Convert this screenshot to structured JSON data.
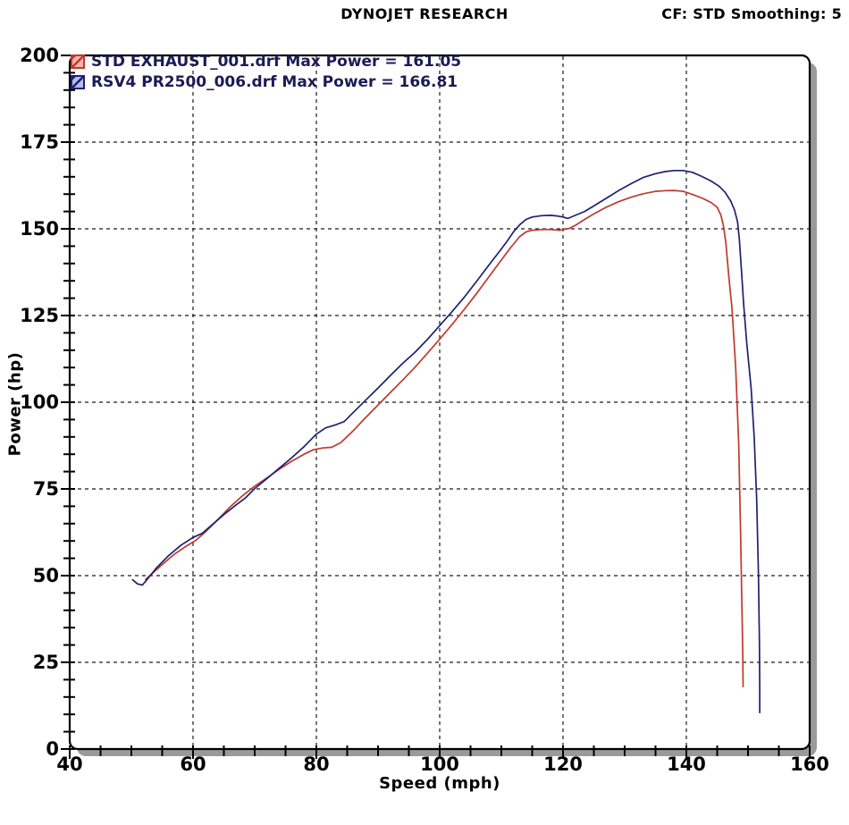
{
  "header": {
    "title": "DYNOJET RESEARCH",
    "right_status": "CF: STD  Smoothing: 5"
  },
  "legend": {
    "items": [
      {
        "label": "STD EXHAUST_001.drf Max Power = 161.05",
        "line_color": "#c0392b",
        "swatch_fill": "#f2b5b0"
      },
      {
        "label": "RSV4 PR2500_006.drf Max Power = 166.81",
        "line_color": "#1c2270",
        "swatch_fill": "#b7bde8"
      }
    ]
  },
  "chart_data": {
    "type": "line",
    "title": "DYNOJET RESEARCH",
    "xlabel": "Speed (mph)",
    "ylabel": "Power (hp)",
    "xlim": [
      40,
      160
    ],
    "ylim": [
      0,
      200
    ],
    "x_major_ticks": [
      40,
      60,
      80,
      100,
      120,
      140,
      160
    ],
    "y_major_ticks": [
      0,
      25,
      50,
      75,
      100,
      125,
      150,
      175,
      200
    ],
    "x_minor_step": 5,
    "y_minor_step": 5,
    "grid": "dashed-major",
    "legend_position": "top-left-inside",
    "series": [
      {
        "name": "STD EXHAUST_001.drf",
        "max_power": 161.05,
        "color": "#c0392b",
        "points": [
          [
            52.3,
            48.9
          ],
          [
            53.5,
            50.8
          ],
          [
            55,
            53.2
          ],
          [
            57,
            56.2
          ],
          [
            59,
            58.6
          ],
          [
            60.5,
            60.2
          ],
          [
            62,
            62.6
          ],
          [
            64,
            66.1
          ],
          [
            66,
            69.8
          ],
          [
            68,
            73.0
          ],
          [
            70,
            75.8
          ],
          [
            72,
            78.2
          ],
          [
            74,
            80.7
          ],
          [
            76,
            83.0
          ],
          [
            78,
            85.0
          ],
          [
            79.5,
            86.3
          ],
          [
            81,
            86.8
          ],
          [
            82.5,
            87.0
          ],
          [
            84,
            88.4
          ],
          [
            86,
            91.8
          ],
          [
            88,
            95.6
          ],
          [
            90,
            99.2
          ],
          [
            92,
            102.8
          ],
          [
            94,
            106.4
          ],
          [
            96,
            110.1
          ],
          [
            98,
            114.1
          ],
          [
            100,
            118.2
          ],
          [
            102,
            122.4
          ],
          [
            104,
            126.8
          ],
          [
            106,
            131.4
          ],
          [
            108,
            136.2
          ],
          [
            110,
            141.0
          ],
          [
            111.5,
            144.6
          ],
          [
            113,
            147.8
          ],
          [
            114,
            149.1
          ],
          [
            115,
            149.6
          ],
          [
            116.5,
            149.8
          ],
          [
            118,
            149.8
          ],
          [
            119.5,
            149.6
          ],
          [
            121,
            150.1
          ],
          [
            122,
            151.0
          ],
          [
            123.5,
            152.7
          ],
          [
            125,
            154.3
          ],
          [
            127,
            156.2
          ],
          [
            129,
            157.8
          ],
          [
            131,
            159.1
          ],
          [
            133,
            160.1
          ],
          [
            135,
            160.8
          ],
          [
            136.5,
            161.0
          ],
          [
            138,
            161.05
          ],
          [
            139.5,
            160.8
          ],
          [
            141,
            159.9
          ],
          [
            142.5,
            158.9
          ],
          [
            144,
            157.6
          ],
          [
            145,
            156.2
          ],
          [
            145.6,
            154.0
          ],
          [
            146,
            151.0
          ],
          [
            146.4,
            146.0
          ],
          [
            146.9,
            136.0
          ],
          [
            147.4,
            127.0
          ],
          [
            148,
            110.0
          ],
          [
            148.5,
            88.0
          ],
          [
            148.8,
            62.0
          ],
          [
            149,
            42.0
          ],
          [
            149.15,
            28.0
          ],
          [
            149.2,
            18.0
          ]
        ]
      },
      {
        "name": "RSV4 PR2500_006.drf",
        "max_power": 166.81,
        "color": "#1c2270",
        "points": [
          [
            50.2,
            48.8
          ],
          [
            51,
            47.6
          ],
          [
            51.8,
            47.3
          ],
          [
            52.6,
            49.0
          ],
          [
            54,
            52.1
          ],
          [
            56,
            55.7
          ],
          [
            58,
            58.7
          ],
          [
            60,
            61.0
          ],
          [
            61.5,
            62.2
          ],
          [
            63,
            64.5
          ],
          [
            65,
            67.6
          ],
          [
            67,
            70.4
          ],
          [
            68.5,
            72.4
          ],
          [
            70,
            75.1
          ],
          [
            72,
            78.0
          ],
          [
            74,
            81.0
          ],
          [
            76,
            84.0
          ],
          [
            78,
            87.2
          ],
          [
            80,
            90.8
          ],
          [
            81.5,
            92.6
          ],
          [
            83,
            93.4
          ],
          [
            84.5,
            94.4
          ],
          [
            86,
            97.1
          ],
          [
            88,
            100.6
          ],
          [
            90,
            104.1
          ],
          [
            92,
            107.7
          ],
          [
            94,
            111.2
          ],
          [
            96,
            114.4
          ],
          [
            98,
            118.1
          ],
          [
            100,
            122.1
          ],
          [
            102,
            126.1
          ],
          [
            104,
            130.3
          ],
          [
            106,
            134.9
          ],
          [
            108,
            139.6
          ],
          [
            110,
            144.2
          ],
          [
            111,
            146.6
          ],
          [
            112,
            149.2
          ],
          [
            113,
            151.2
          ],
          [
            114,
            152.7
          ],
          [
            115,
            153.4
          ],
          [
            116.5,
            153.8
          ],
          [
            118,
            153.9
          ],
          [
            119,
            153.7
          ],
          [
            120,
            153.4
          ],
          [
            120.8,
            153.0
          ],
          [
            122,
            153.9
          ],
          [
            123.5,
            155.0
          ],
          [
            125,
            156.6
          ],
          [
            127,
            158.8
          ],
          [
            129,
            161.0
          ],
          [
            131,
            163.0
          ],
          [
            133,
            164.8
          ],
          [
            135,
            165.9
          ],
          [
            136.5,
            166.5
          ],
          [
            138,
            166.81
          ],
          [
            139.5,
            166.8
          ],
          [
            141,
            166.3
          ],
          [
            142.5,
            165.1
          ],
          [
            144,
            163.8
          ],
          [
            145.3,
            162.3
          ],
          [
            146.3,
            160.5
          ],
          [
            147.2,
            158.0
          ],
          [
            147.8,
            155.5
          ],
          [
            148.3,
            152.0
          ],
          [
            148.6,
            147.0
          ],
          [
            148.9,
            139.0
          ],
          [
            149.3,
            128.0
          ],
          [
            149.8,
            117.0
          ],
          [
            150.5,
            104.0
          ],
          [
            151,
            90.0
          ],
          [
            151.4,
            72.0
          ],
          [
            151.7,
            50.0
          ],
          [
            151.85,
            30.0
          ],
          [
            151.9,
            18.0
          ],
          [
            151.9,
            10.5
          ]
        ]
      }
    ]
  }
}
